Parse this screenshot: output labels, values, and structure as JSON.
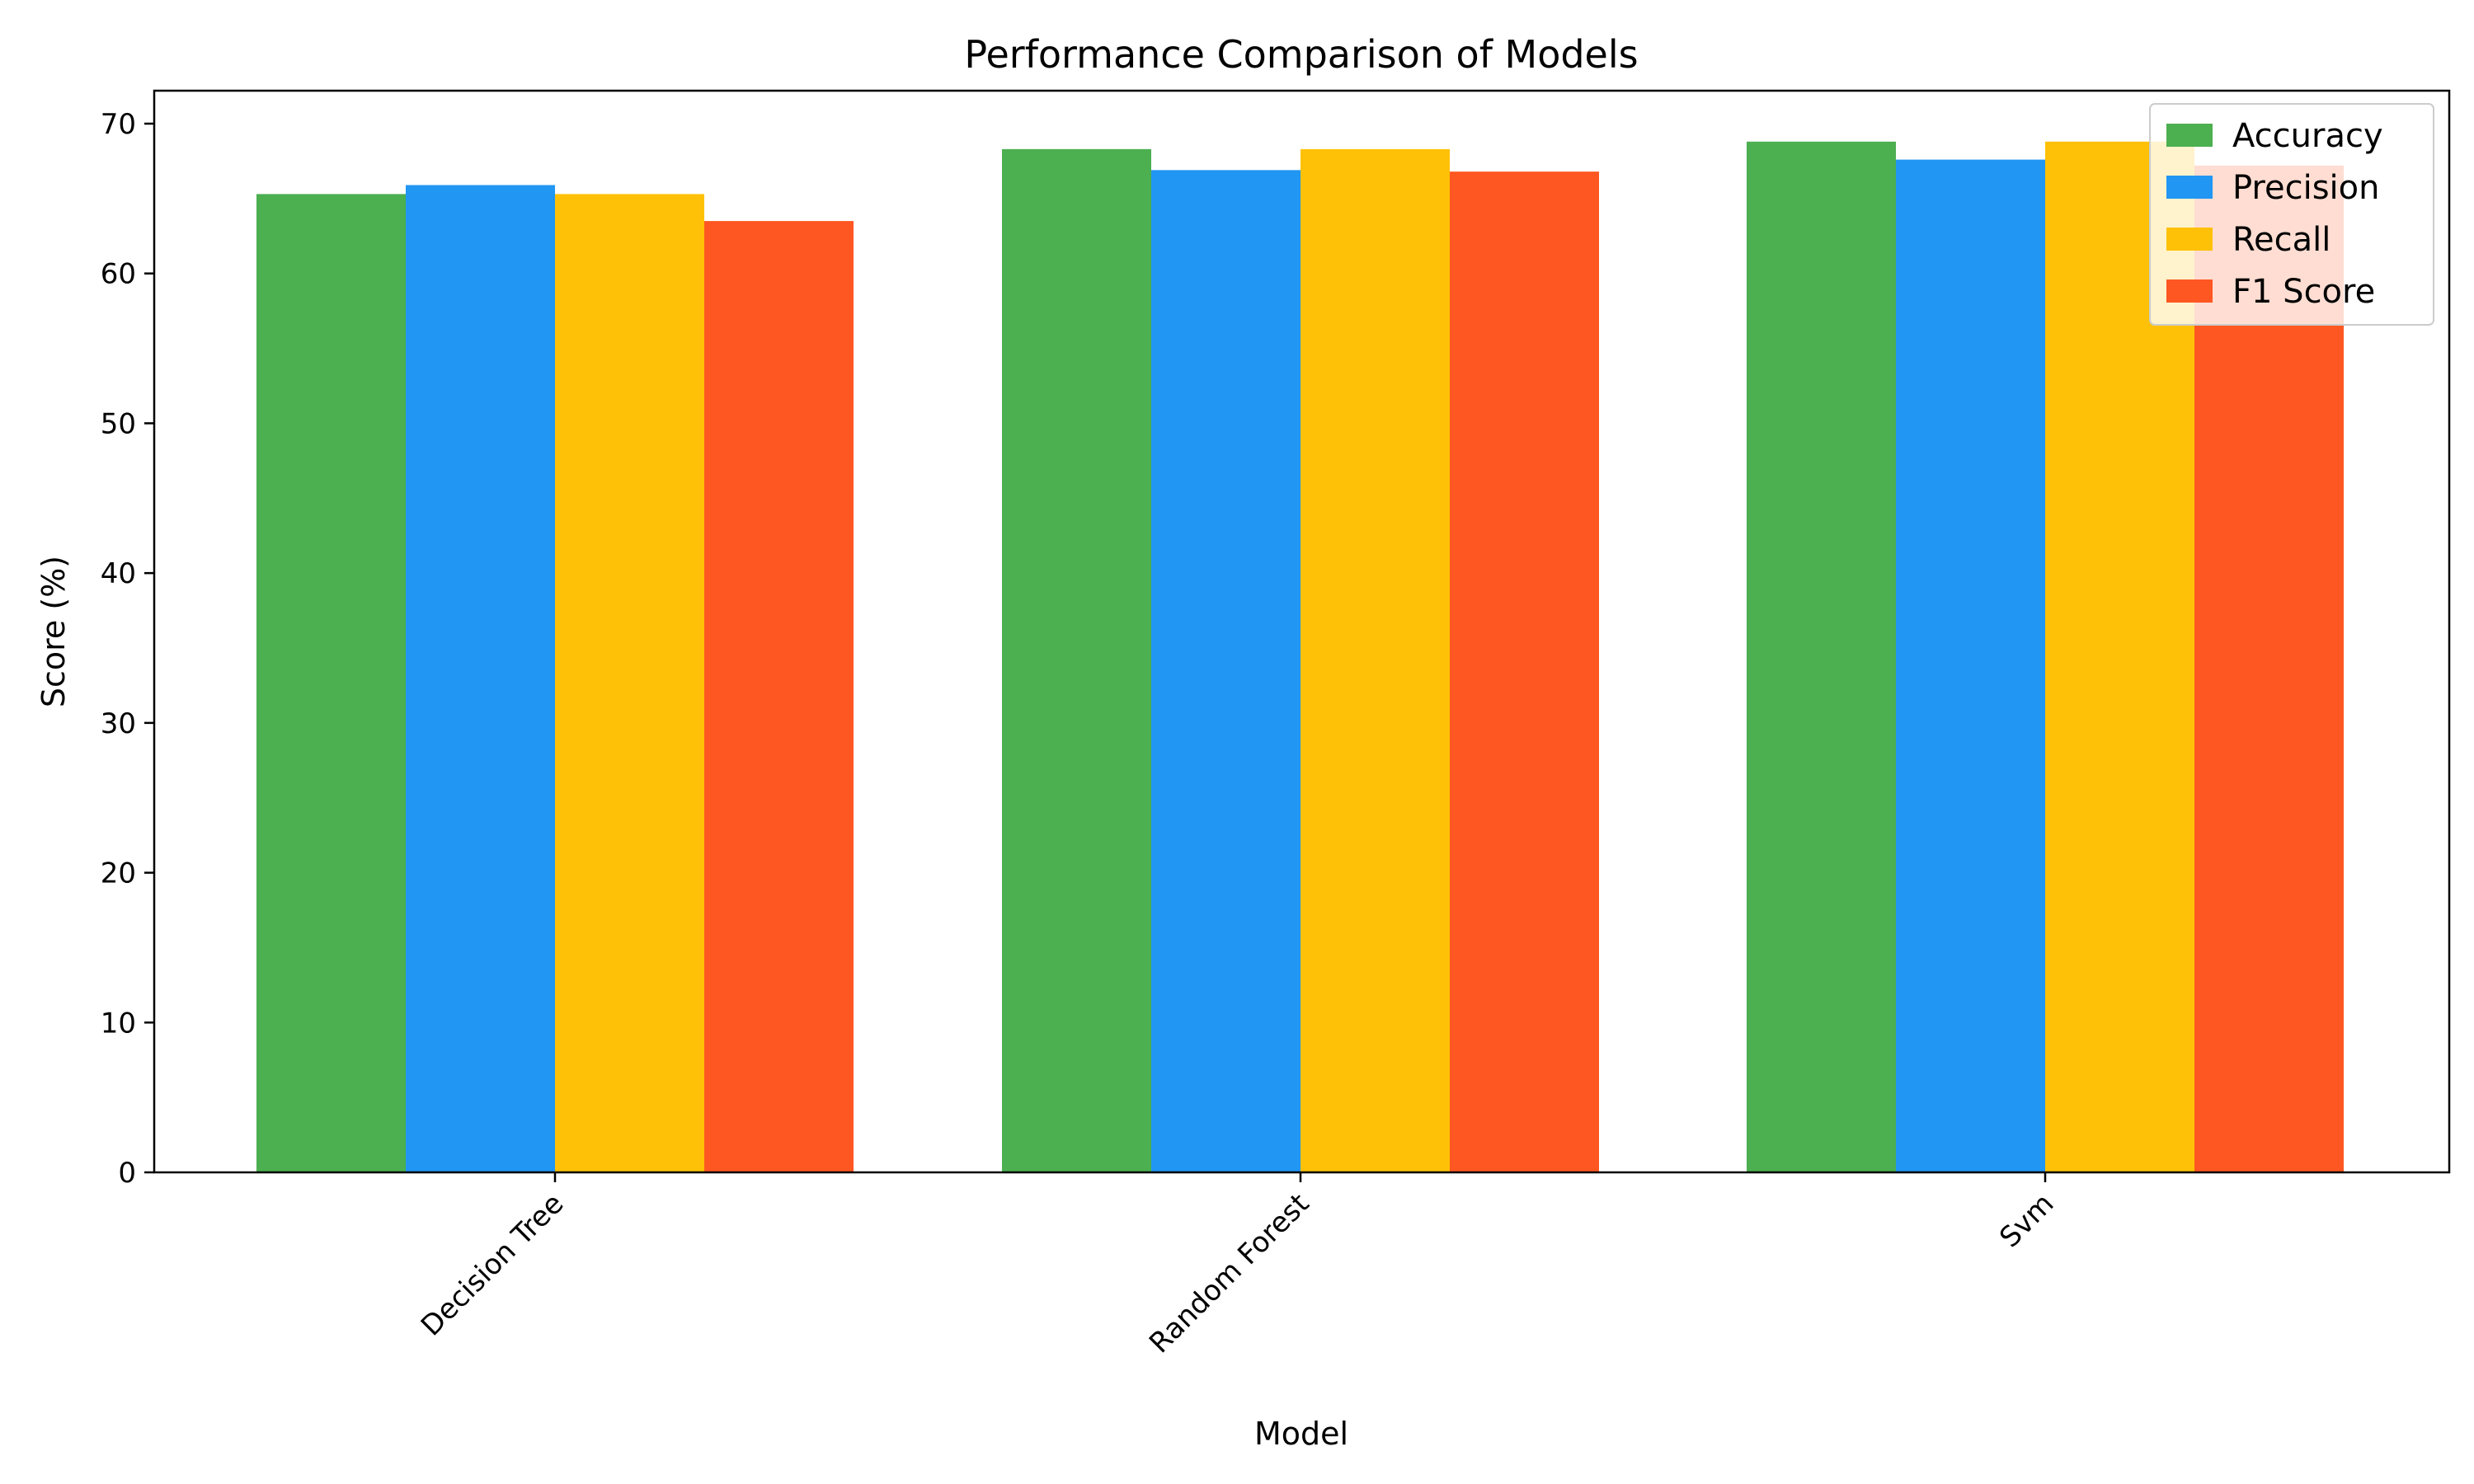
{
  "chart_data": {
    "type": "bar",
    "title": "Performance Comparison of Models",
    "xlabel": "Model",
    "ylabel": "Score (%)",
    "categories": [
      "Decision Tree",
      "Random Forest",
      "Svm"
    ],
    "series": [
      {
        "name": "Accuracy",
        "color": "#4CAF50",
        "values": [
          65.3,
          68.3,
          68.8
        ]
      },
      {
        "name": "Precision",
        "color": "#2196F3",
        "values": [
          65.9,
          66.9,
          67.6
        ]
      },
      {
        "name": "Recall",
        "color": "#FFC107",
        "values": [
          65.3,
          68.3,
          68.8
        ]
      },
      {
        "name": "F1 Score",
        "color": "#FF5722",
        "values": [
          63.5,
          66.8,
          67.2
        ]
      }
    ],
    "ylim": [
      0,
      72.2
    ],
    "yticks": [
      0,
      10,
      20,
      30,
      40,
      50,
      60,
      70
    ],
    "grid": false,
    "legend_position": "top-right",
    "xtick_rotation_deg": 45
  }
}
